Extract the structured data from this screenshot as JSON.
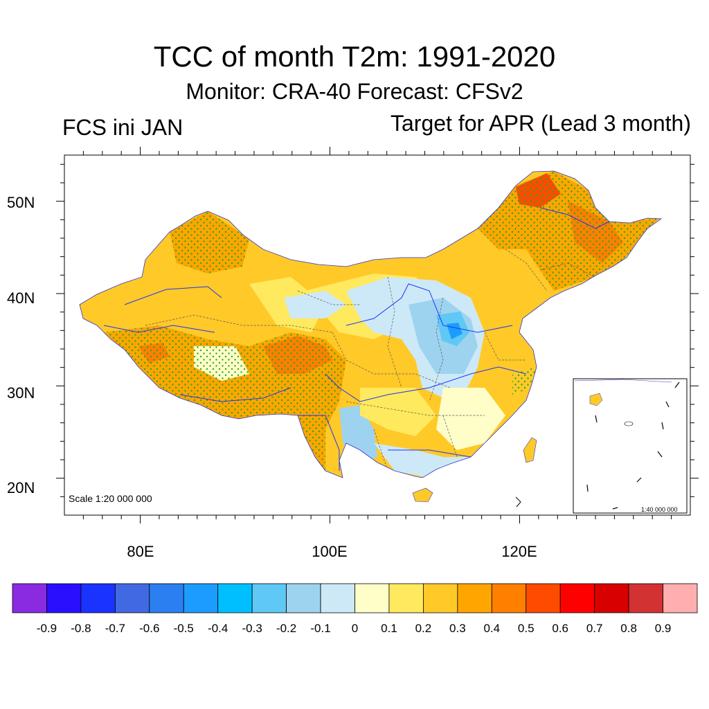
{
  "title": "TCC of month T2m: 1991-2020",
  "subtitle": "Monitor: CRA-40   Forecast: CFSv2",
  "left_label": "FCS ini JAN",
  "right_label": "Target for APR (Lead 3 month)",
  "map": {
    "lat_labels": [
      "50N",
      "40N",
      "30N",
      "20N"
    ],
    "lat_values": [
      50,
      40,
      30,
      20
    ],
    "lon_labels": [
      "80E",
      "100E",
      "120E"
    ],
    "lon_values": [
      80,
      100,
      120
    ],
    "extent": {
      "lon": [
        72,
        138
      ],
      "lat": [
        16,
        55
      ]
    },
    "scale_text": "Scale 1:20 000 000",
    "inset_scale_text": "1:40 000 000",
    "stipple_color": "#22aa22"
  },
  "colorbar": {
    "colors": [
      "#8a2be2",
      "#2a0fff",
      "#1a33ff",
      "#4169e1",
      "#2b7ff0",
      "#1c9cff",
      "#00bfff",
      "#5fc8f5",
      "#9ed3f0",
      "#cde9f7",
      "#fffdc8",
      "#ffe95e",
      "#ffc928",
      "#ffa500",
      "#ff7f00",
      "#ff4b00",
      "#ff0000",
      "#d80000",
      "#d33232",
      "#ffafaf"
    ],
    "labels": [
      "-0.9",
      "-0.8",
      "-0.7",
      "-0.6",
      "-0.5",
      "-0.4",
      "-0.3",
      "-0.2",
      "-0.1",
      "0",
      "0.1",
      "0.2",
      "0.3",
      "0.4",
      "0.5",
      "0.6",
      "0.7",
      "0.8",
      "0.9"
    ]
  }
}
